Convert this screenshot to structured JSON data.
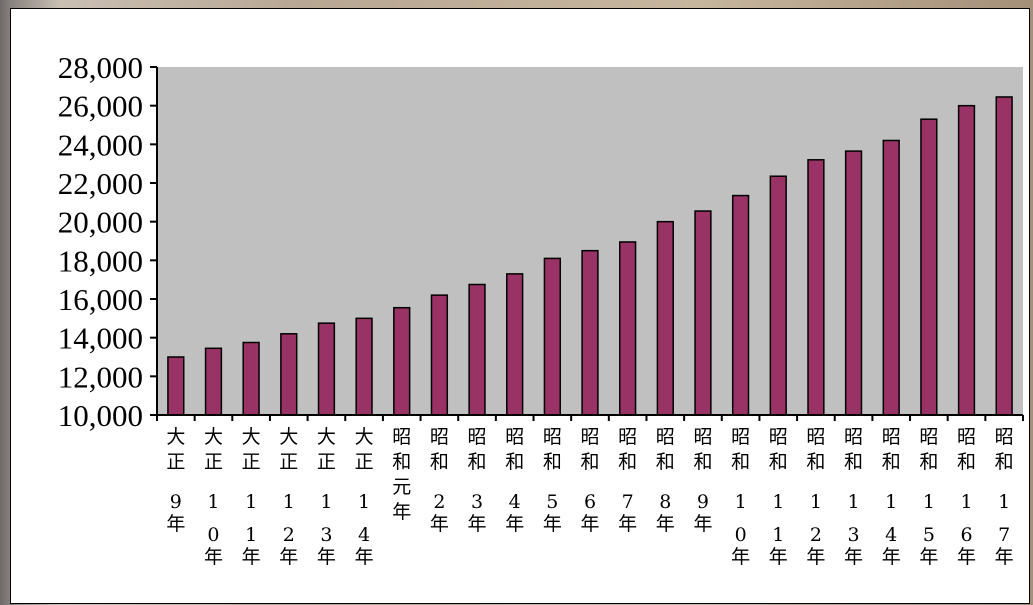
{
  "chart_data": {
    "type": "bar",
    "title": "",
    "xlabel": "",
    "ylabel": "",
    "ylim": [
      10000,
      28000
    ],
    "yticks": [
      10000,
      12000,
      14000,
      16000,
      18000,
      20000,
      22000,
      24000,
      26000,
      28000
    ],
    "ytick_labels": [
      "10,000",
      "12,000",
      "14,000",
      "16,000",
      "18,000",
      "20,000",
      "22,000",
      "24,000",
      "26,000",
      "28,000"
    ],
    "categories": [
      "大正9年",
      "大正10年",
      "大正11年",
      "大正12年",
      "大正13年",
      "大正14年",
      "昭和元年",
      "昭和2年",
      "昭和3年",
      "昭和4年",
      "昭和5年",
      "昭和6年",
      "昭和7年",
      "昭和8年",
      "昭和9年",
      "昭和10年",
      "昭和11年",
      "昭和12年",
      "昭和13年",
      "昭和14年",
      "昭和15年",
      "昭和16年",
      "昭和17年"
    ],
    "values": [
      13000,
      13450,
      13750,
      14200,
      14750,
      15000,
      15550,
      16200,
      16750,
      17300,
      18100,
      18500,
      18950,
      20000,
      20550,
      21350,
      22350,
      23200,
      23650,
      24200,
      25300,
      26000,
      26450
    ],
    "grid": false,
    "legend": "none",
    "colors": {
      "bar_fill": "#993366",
      "plot_bg": "#c0c0c0",
      "axis": "#000000"
    }
  }
}
